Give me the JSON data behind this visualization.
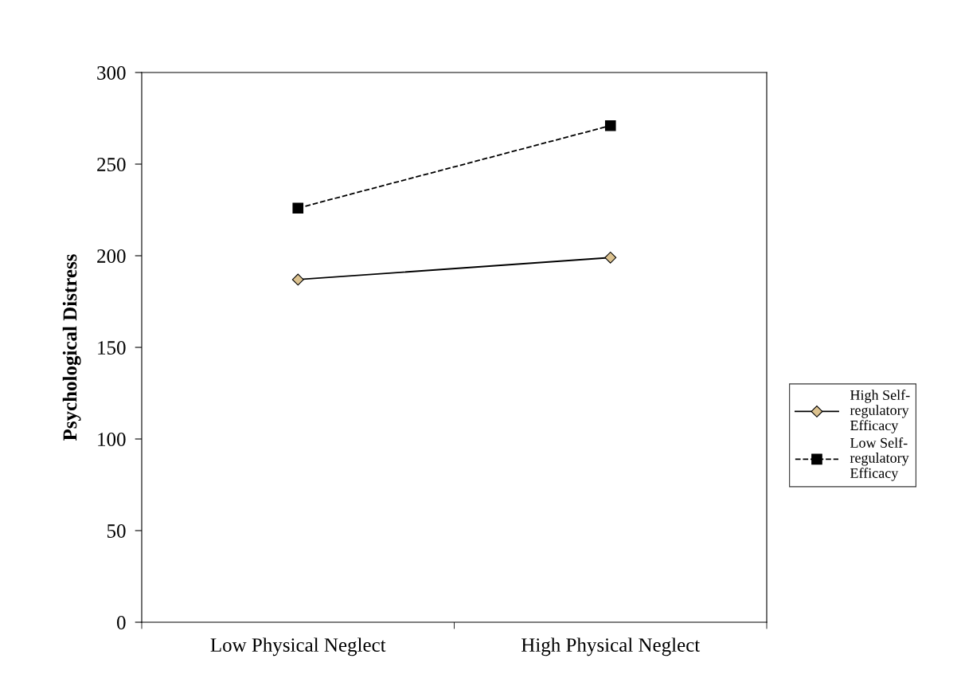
{
  "chart_data": {
    "type": "line",
    "ylabel": "Psychological Distress",
    "categories": [
      "Low Physical Neglect",
      "High Physical Neglect"
    ],
    "series": [
      {
        "name": "High Self-regulatory Efficacy",
        "color": "#dcc28f",
        "values": [
          187,
          199
        ],
        "marker": "diamond",
        "line_style": "solid"
      },
      {
        "name": "Low Self-regulatory Efficacy",
        "color": "#000000",
        "values": [
          226,
          271
        ],
        "marker": "square",
        "line_style": "dashed"
      }
    ],
    "ylim": [
      0,
      300
    ],
    "yticks": [
      0,
      50,
      100,
      150,
      200,
      250,
      300
    ],
    "grid": false,
    "legend": "right"
  }
}
